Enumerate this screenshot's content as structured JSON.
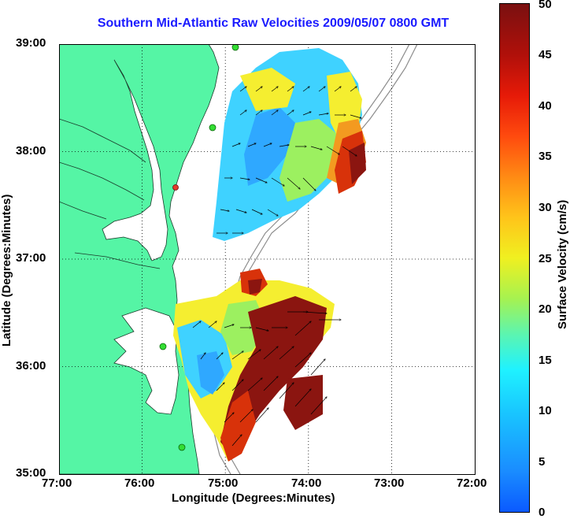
{
  "title": "Southern Mid-Atlantic Raw Velocities 2009/05/07 0800 GMT",
  "map": {
    "xlabel": "Longitude (Degrees:Minutes)",
    "ylabel": "Latitude (Degrees:Minutes)",
    "x_ticks": [
      "77:00",
      "76:00",
      "75:00",
      "74:00",
      "73:00",
      "72:00"
    ],
    "y_ticks": [
      "39:00",
      "38:00",
      "37:00",
      "36:00",
      "35:00"
    ],
    "lon_range": [
      -77,
      -72
    ],
    "lat_range": [
      35,
      39
    ],
    "grid": "dotted",
    "land_color": "#55f5a5",
    "water_color": "#ffffff",
    "site_color": "#33dd33",
    "site_color_alt": "#e23a2a"
  },
  "colorbar": {
    "label": "Surface Velocity (cm/s)",
    "ticks": [
      "50",
      "45",
      "40",
      "35",
      "30",
      "25",
      "20",
      "15",
      "10",
      "5",
      "0"
    ],
    "range": [
      0,
      50
    ]
  }
}
